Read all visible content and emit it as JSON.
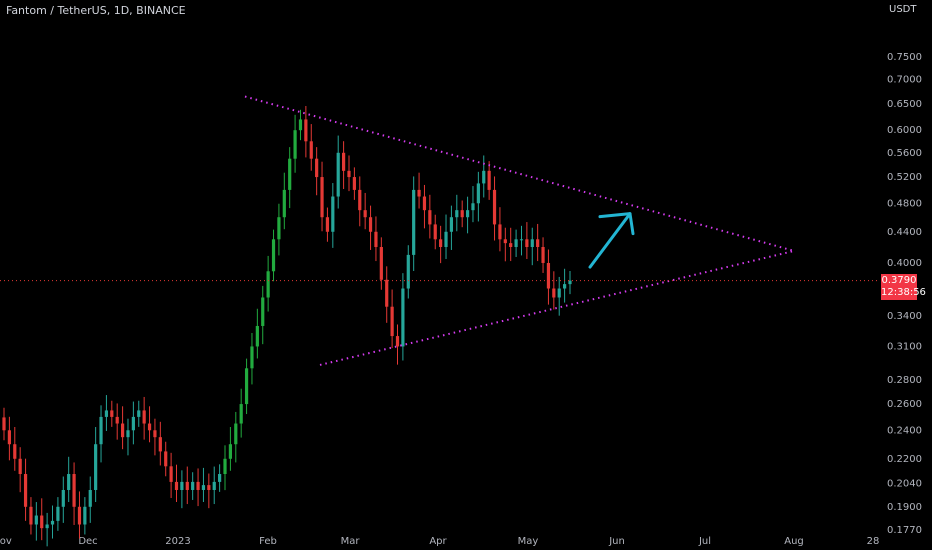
{
  "header": {
    "title": "Fantom / TetherUS, 1D, BINANCE",
    "currency": "USDT"
  },
  "last_price": {
    "price": "0.3790",
    "countdown": "12:38:56",
    "color": "#f23645"
  },
  "colors": {
    "up": "#26a69a",
    "up_bright": "#22ab3f",
    "down": "#e53935",
    "trendline": "#d63cf0",
    "arrow": "#23b5d3"
  },
  "chart_data": {
    "type": "candlestick",
    "title": "Fantom / TetherUS, 1D, BINANCE",
    "y_scale": "log",
    "ylim": [
      0.177,
      0.84
    ],
    "x_ticks": [
      "Nov",
      "Dec",
      "2023",
      "Feb",
      "Mar",
      "Apr",
      "May",
      "Jun",
      "Jul",
      "Aug",
      "28"
    ],
    "y_ticks": [
      "0.7500",
      "0.7000",
      "0.6500",
      "0.6000",
      "0.5600",
      "0.5200",
      "0.4800",
      "0.4400",
      "0.4000",
      "0.3400",
      "0.3100",
      "0.2800",
      "0.2600",
      "0.2400",
      "0.2200",
      "0.2040",
      "0.1900",
      "0.1770"
    ],
    "close_series": [
      0.24,
      0.23,
      0.22,
      0.21,
      0.19,
      0.18,
      0.185,
      0.178,
      0.18,
      0.182,
      0.19,
      0.2,
      0.21,
      0.19,
      0.18,
      0.19,
      0.2,
      0.23,
      0.25,
      0.255,
      0.25,
      0.245,
      0.235,
      0.24,
      0.25,
      0.255,
      0.245,
      0.24,
      0.235,
      0.225,
      0.215,
      0.205,
      0.2,
      0.205,
      0.2,
      0.205,
      0.2,
      0.203,
      0.2,
      0.205,
      0.21,
      0.22,
      0.23,
      0.245,
      0.26,
      0.29,
      0.31,
      0.33,
      0.36,
      0.39,
      0.43,
      0.46,
      0.5,
      0.55,
      0.6,
      0.62,
      0.58,
      0.55,
      0.52,
      0.46,
      0.44,
      0.49,
      0.56,
      0.53,
      0.52,
      0.5,
      0.47,
      0.46,
      0.44,
      0.42,
      0.38,
      0.35,
      0.32,
      0.31,
      0.37,
      0.41,
      0.5,
      0.49,
      0.47,
      0.45,
      0.43,
      0.42,
      0.44,
      0.46,
      0.47,
      0.46,
      0.47,
      0.48,
      0.51,
      0.53,
      0.5,
      0.45,
      0.43,
      0.425,
      0.42,
      0.43,
      0.43,
      0.42,
      0.43,
      0.42,
      0.4,
      0.37,
      0.36,
      0.37,
      0.375,
      0.379
    ],
    "annotations": [
      {
        "type": "trendline",
        "style": "dotted",
        "role": "upper",
        "from": [
          "Jan 20",
          0.665
        ],
        "to": [
          "Aug",
          0.415
        ]
      },
      {
        "type": "trendline",
        "style": "dotted",
        "role": "lower",
        "from": [
          "Feb 20",
          0.293
        ],
        "to": [
          "Aug",
          0.415
        ]
      },
      {
        "type": "arrow",
        "direction": "up",
        "from": [
          "May 25",
          0.395
        ],
        "to": [
          "Jun 10",
          0.465
        ]
      }
    ]
  }
}
